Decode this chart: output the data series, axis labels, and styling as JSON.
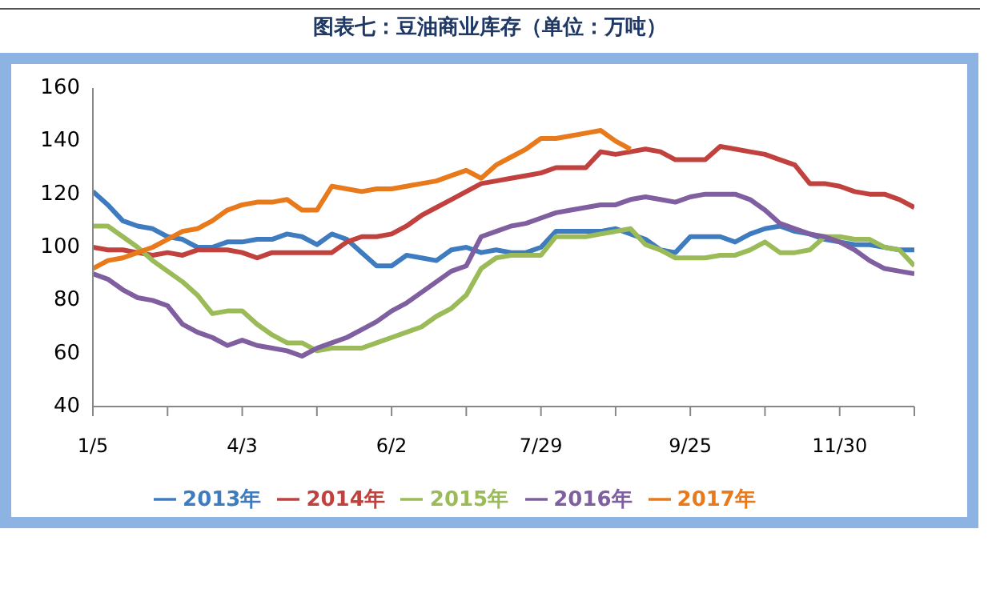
{
  "chart_data": {
    "type": "line",
    "title": "图表七：豆油商业库存（单位：万吨）",
    "categories": [
      "1/5",
      null,
      null,
      null,
      null,
      null,
      null,
      null,
      null,
      null,
      "4/3",
      null,
      null,
      null,
      null,
      null,
      null,
      null,
      null,
      null,
      "6/2",
      null,
      null,
      null,
      null,
      null,
      null,
      null,
      null,
      null,
      "7/29",
      null,
      null,
      null,
      null,
      null,
      null,
      null,
      null,
      null,
      "9/25",
      null,
      null,
      null,
      null,
      null,
      null,
      null,
      null,
      null,
      "11/30",
      null,
      null,
      null,
      null,
      null
    ],
    "ylim": [
      40,
      160
    ],
    "yticks": [
      40,
      60,
      80,
      100,
      120,
      140,
      160
    ],
    "grid": false,
    "legend": "bottom",
    "marker": "none",
    "line_style": "solid",
    "series": [
      {
        "name": "2013年",
        "color": "#3f7cbf",
        "values": [
          121,
          116,
          110,
          108,
          107,
          104,
          103,
          100,
          100,
          102,
          102,
          103,
          103,
          105,
          104,
          101,
          105,
          103,
          98,
          93,
          93,
          97,
          96,
          95,
          99,
          100,
          98,
          99,
          98,
          98,
          100,
          106,
          106,
          106,
          106,
          107,
          105,
          103,
          99,
          98,
          104,
          104,
          104,
          102,
          105,
          107,
          108,
          106,
          105,
          103,
          102,
          101,
          101,
          100,
          99,
          99
        ]
      },
      {
        "name": "2014年",
        "color": "#c0413d",
        "values": [
          100,
          99,
          99,
          98,
          97,
          98,
          97,
          99,
          99,
          99,
          98,
          96,
          98,
          98,
          98,
          98,
          98,
          102,
          104,
          104,
          105,
          108,
          112,
          115,
          118,
          121,
          124,
          125,
          126,
          127,
          128,
          130,
          130,
          130,
          136,
          135,
          136,
          137,
          136,
          133,
          133,
          133,
          138,
          137,
          136,
          135,
          133,
          131,
          124,
          124,
          123,
          121,
          120,
          120,
          118,
          115
        ]
      },
      {
        "name": "2015年",
        "color": "#9bbb59",
        "values": [
          108,
          108,
          104,
          100,
          95,
          91,
          87,
          82,
          75,
          76,
          76,
          71,
          67,
          64,
          64,
          61,
          62,
          62,
          62,
          64,
          66,
          68,
          70,
          74,
          77,
          82,
          92,
          96,
          97,
          97,
          97,
          104,
          104,
          104,
          105,
          106,
          107,
          101,
          99,
          96,
          96,
          96,
          97,
          97,
          99,
          102,
          98,
          98,
          99,
          104,
          104,
          103,
          103,
          100,
          99,
          93
        ]
      },
      {
        "name": "2016年",
        "color": "#7f5fa0",
        "values": [
          90,
          88,
          84,
          81,
          80,
          78,
          71,
          68,
          66,
          63,
          65,
          63,
          62,
          61,
          59,
          62,
          64,
          66,
          69,
          72,
          76,
          79,
          83,
          87,
          91,
          93,
          104,
          106,
          108,
          109,
          111,
          113,
          114,
          115,
          116,
          116,
          118,
          119,
          118,
          117,
          119,
          120,
          120,
          120,
          118,
          114,
          109,
          107,
          105,
          104,
          102,
          99,
          95,
          92,
          91,
          90
        ]
      },
      {
        "name": "2017年",
        "color": "#e87a1c",
        "values": [
          92,
          95,
          96,
          98,
          100,
          103,
          106,
          107,
          110,
          114,
          116,
          117,
          117,
          118,
          114,
          114,
          123,
          122,
          121,
          122,
          122,
          123,
          124,
          125,
          127,
          129,
          126,
          131,
          134,
          137,
          141,
          141,
          142,
          143,
          144,
          140,
          137,
          null,
          null,
          null,
          null,
          null,
          null,
          null,
          null,
          null,
          null,
          null,
          null,
          null,
          null,
          null,
          null,
          null,
          null,
          null
        ]
      }
    ]
  }
}
